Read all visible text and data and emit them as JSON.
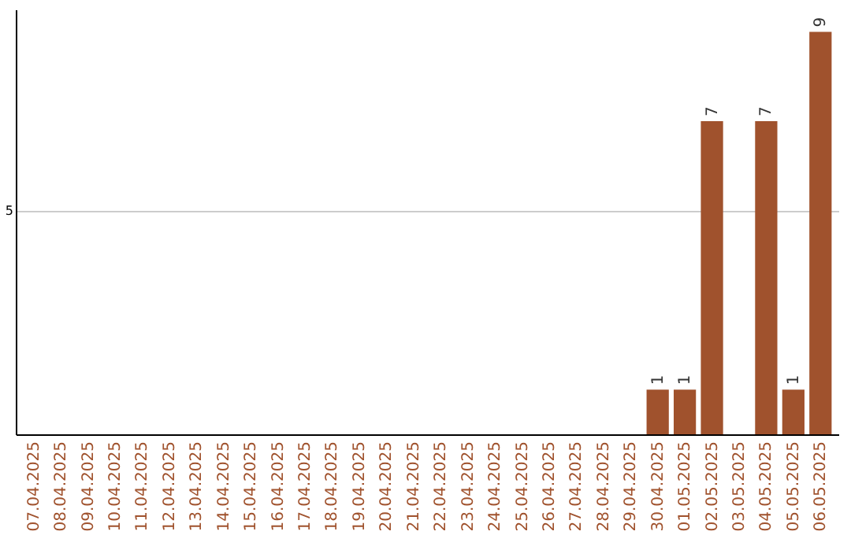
{
  "chart_data": {
    "type": "bar",
    "categories": [
      "07.04.2025",
      "08.04.2025",
      "09.04.2025",
      "10.04.2025",
      "11.04.2025",
      "12.04.2025",
      "13.04.2025",
      "14.04.2025",
      "15.04.2025",
      "16.04.2025",
      "17.04.2025",
      "18.04.2025",
      "19.04.2025",
      "20.04.2025",
      "21.04.2025",
      "22.04.2025",
      "23.04.2025",
      "24.04.2025",
      "25.04.2025",
      "26.04.2025",
      "27.04.2025",
      "28.04.2025",
      "29.04.2025",
      "30.04.2025",
      "01.05.2025",
      "02.05.2025",
      "03.05.2025",
      "04.05.2025",
      "05.05.2025",
      "06.05.2025"
    ],
    "values": [
      null,
      null,
      null,
      null,
      null,
      null,
      null,
      null,
      null,
      null,
      null,
      null,
      null,
      null,
      null,
      null,
      null,
      null,
      null,
      null,
      null,
      null,
      null,
      1,
      1,
      7,
      null,
      7,
      1,
      9
    ],
    "data_labels": true,
    "color": "#a0522d",
    "ylim": [
      0,
      9.5
    ],
    "yticks": [
      5
    ],
    "grid": "y"
  }
}
